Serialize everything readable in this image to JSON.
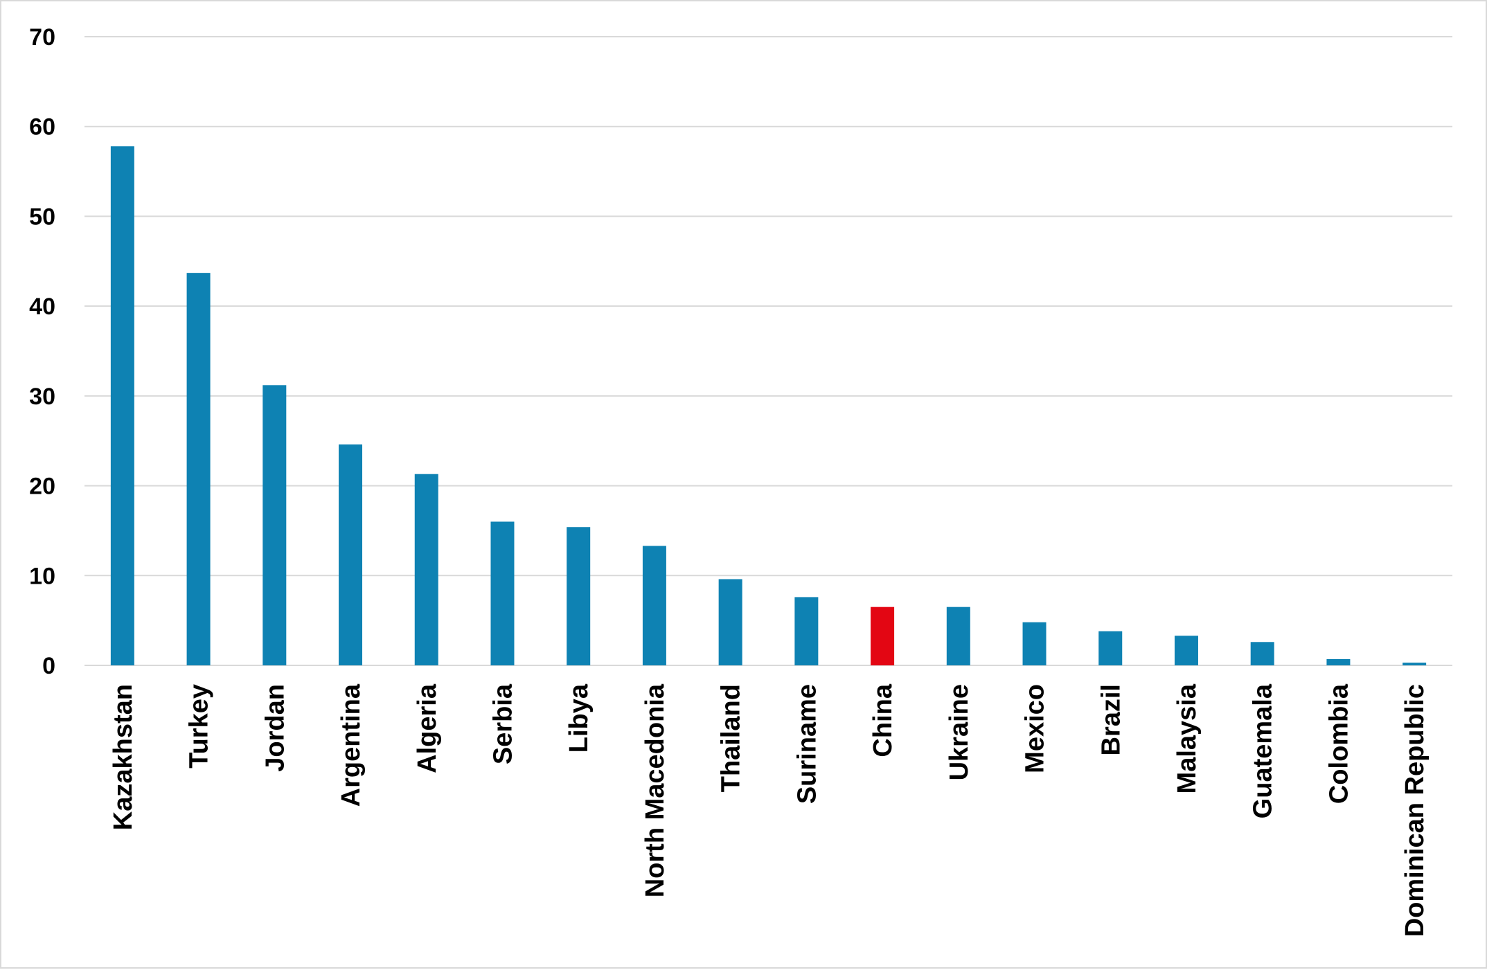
{
  "chart_data": {
    "type": "bar",
    "title": "",
    "xlabel": "",
    "ylabel": "",
    "ylim": [
      0,
      70
    ],
    "yticks": [
      0,
      10,
      20,
      30,
      40,
      50,
      60,
      70
    ],
    "grid": true,
    "legend": "none",
    "categories": [
      "Kazakhstan",
      "Turkey",
      "Jordan",
      "Argentina",
      "Algeria",
      "Serbia",
      "Libya",
      "North Macedonia",
      "Thailand",
      "Suriname",
      "China",
      "Ukraine",
      "Mexico",
      "Brazil",
      "Malaysia",
      "Guatemala",
      "Colombia",
      "Dominican Republic"
    ],
    "values": [
      57.8,
      43.7,
      31.2,
      24.6,
      21.3,
      16.0,
      15.4,
      13.3,
      9.6,
      7.6,
      6.5,
      6.5,
      4.8,
      3.8,
      3.3,
      2.6,
      0.7,
      0.3
    ],
    "highlight_category": "China",
    "colors": {
      "bar": "#0E82B3",
      "highlight": "#E30613",
      "grid": "#d9d9d9",
      "border": "#d9d9d9",
      "text": "#000000"
    }
  }
}
